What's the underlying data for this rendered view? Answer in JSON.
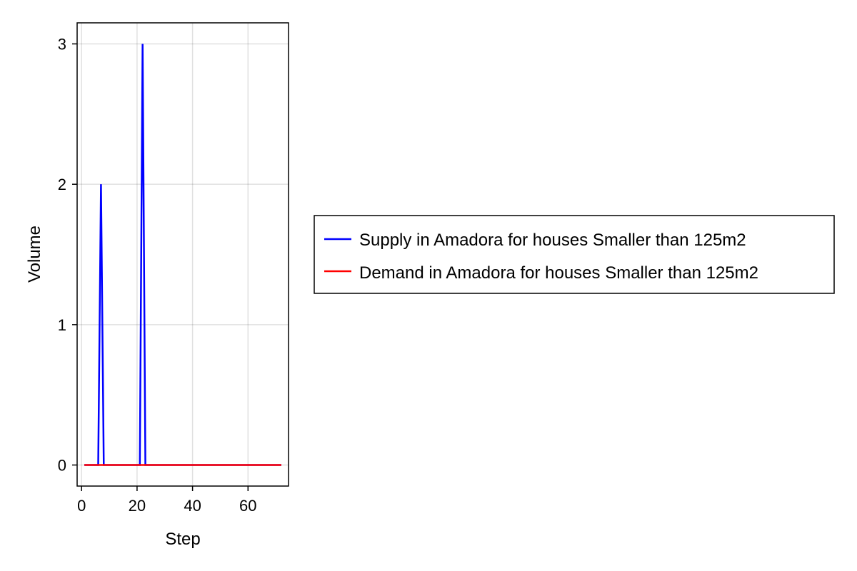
{
  "chart_data": {
    "type": "line",
    "xlabel": "Step",
    "ylabel": "Volume",
    "xlim": [
      -1.6,
      74.6
    ],
    "ylim": [
      -0.15,
      3.15
    ],
    "xticks": [
      0,
      20,
      40,
      60
    ],
    "yticks": [
      0,
      1,
      2,
      3
    ],
    "grid": true,
    "legend_position": "right",
    "series": [
      {
        "name": "Supply in Amadora for houses Smaller than 125m2",
        "color": "#0000ff",
        "x": [
          1,
          2,
          3,
          4,
          5,
          6,
          7,
          8,
          9,
          10,
          11,
          12,
          13,
          14,
          15,
          16,
          17,
          18,
          19,
          20,
          21,
          22,
          23,
          24,
          25,
          26,
          27,
          28,
          29,
          30,
          31,
          32,
          33,
          34,
          35,
          36,
          37,
          38,
          39,
          40,
          41,
          42,
          43,
          44,
          45,
          46,
          47,
          48,
          49,
          50,
          51,
          52,
          53,
          54,
          55,
          56,
          57,
          58,
          59,
          60,
          61,
          62,
          63,
          64,
          65,
          66,
          67,
          68,
          69,
          70,
          71,
          72
        ],
        "y": [
          0,
          0,
          0,
          0,
          0,
          0,
          2,
          0,
          0,
          0,
          0,
          0,
          0,
          0,
          0,
          0,
          0,
          0,
          0,
          0,
          0,
          3,
          0,
          0,
          0,
          0,
          0,
          0,
          0,
          0,
          0,
          0,
          0,
          0,
          0,
          0,
          0,
          0,
          0,
          0,
          0,
          0,
          0,
          0,
          0,
          0,
          0,
          0,
          0,
          0,
          0,
          0,
          0,
          0,
          0,
          0,
          0,
          0,
          0,
          0,
          0,
          0,
          0,
          0,
          0,
          0,
          0,
          0,
          0,
          0,
          0,
          0
        ]
      },
      {
        "name": "Demand in Amadora for houses Smaller than 125m2",
        "color": "#ff0000",
        "x": [
          1,
          2,
          3,
          4,
          5,
          6,
          7,
          8,
          9,
          10,
          11,
          12,
          13,
          14,
          15,
          16,
          17,
          18,
          19,
          20,
          21,
          22,
          23,
          24,
          25,
          26,
          27,
          28,
          29,
          30,
          31,
          32,
          33,
          34,
          35,
          36,
          37,
          38,
          39,
          40,
          41,
          42,
          43,
          44,
          45,
          46,
          47,
          48,
          49,
          50,
          51,
          52,
          53,
          54,
          55,
          56,
          57,
          58,
          59,
          60,
          61,
          62,
          63,
          64,
          65,
          66,
          67,
          68,
          69,
          70,
          71,
          72
        ],
        "y": [
          0,
          0,
          0,
          0,
          0,
          0,
          0,
          0,
          0,
          0,
          0,
          0,
          0,
          0,
          0,
          0,
          0,
          0,
          0,
          0,
          0,
          0,
          0,
          0,
          0,
          0,
          0,
          0,
          0,
          0,
          0,
          0,
          0,
          0,
          0,
          0,
          0,
          0,
          0,
          0,
          0,
          0,
          0,
          0,
          0,
          0,
          0,
          0,
          0,
          0,
          0,
          0,
          0,
          0,
          0,
          0,
          0,
          0,
          0,
          0,
          0,
          0,
          0,
          0,
          0,
          0,
          0,
          0,
          0,
          0,
          0,
          0
        ]
      }
    ]
  }
}
